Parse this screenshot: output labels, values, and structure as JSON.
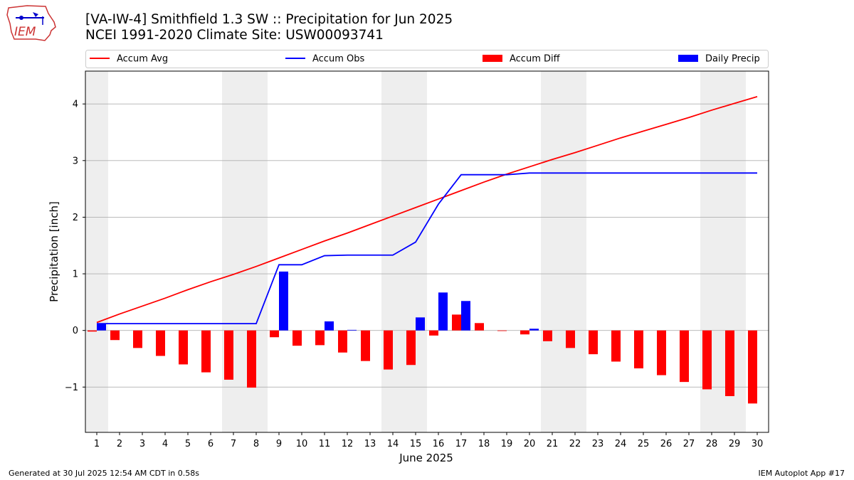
{
  "header": {
    "title_line1": "[VA-IW-4] Smithfield 1.3 SW :: Precipitation for Jun 2025",
    "title_line2": "NCEI 1991-2020 Climate Site: USW00093741"
  },
  "logo": {
    "text": "IEM"
  },
  "footer": {
    "left": "Generated at 30 Jul 2025 12:54 AM CDT in 0.58s",
    "right": "IEM Autoplot App #17"
  },
  "colors": {
    "avg": "#ff0000",
    "obs": "#0000ff",
    "diff": "#ff0000",
    "daily": "#0000ff",
    "weekend_shade": "#eeeeee",
    "grid": "#b0b0b0"
  },
  "chart_data": {
    "type": "bar",
    "xlabel": "June 2025",
    "ylabel": "Precipitation [inch]",
    "ylim": [
      -1.8,
      4.58
    ],
    "yticks": [
      -1,
      0,
      1,
      2,
      3,
      4
    ],
    "grid": "horizontal",
    "legend_position": "top",
    "x": [
      1,
      2,
      3,
      4,
      5,
      6,
      7,
      8,
      9,
      10,
      11,
      12,
      13,
      14,
      15,
      16,
      17,
      18,
      19,
      20,
      21,
      22,
      23,
      24,
      25,
      26,
      27,
      28,
      29,
      30
    ],
    "weekend_days": [
      1,
      7,
      8,
      14,
      15,
      21,
      22,
      28,
      29
    ],
    "series": [
      {
        "name": "Accum Avg",
        "kind": "line",
        "values": [
          0.14,
          0.29,
          0.43,
          0.57,
          0.72,
          0.86,
          0.99,
          1.13,
          1.28,
          1.43,
          1.58,
          1.72,
          1.87,
          2.02,
          2.17,
          2.32,
          2.47,
          2.62,
          2.76,
          2.89,
          3.02,
          3.14,
          3.27,
          3.4,
          3.52,
          3.64,
          3.76,
          3.89,
          4.01,
          4.13
        ]
      },
      {
        "name": "Accum Obs",
        "kind": "line",
        "values": [
          0.12,
          0.12,
          0.12,
          0.12,
          0.12,
          0.12,
          0.12,
          0.12,
          1.16,
          1.16,
          1.32,
          1.33,
          1.33,
          1.33,
          1.56,
          2.23,
          2.75,
          2.75,
          2.75,
          2.78,
          2.78,
          2.78,
          2.78,
          2.78,
          2.78,
          2.78,
          2.78,
          2.78,
          2.78,
          2.78
        ]
      },
      {
        "name": "Accum Diff",
        "kind": "bar",
        "values": [
          -0.02,
          -0.17,
          -0.31,
          -0.45,
          -0.6,
          -0.74,
          -0.87,
          -1.01,
          -0.12,
          -0.27,
          -0.26,
          -0.39,
          -0.54,
          -0.69,
          -0.61,
          -0.09,
          0.28,
          0.13,
          -0.01,
          -0.07,
          -0.19,
          -0.31,
          -0.42,
          -0.55,
          -0.67,
          -0.79,
          -0.91,
          -1.04,
          -1.16,
          -1.29
        ]
      },
      {
        "name": "Daily Precip",
        "kind": "bar",
        "values": [
          0.12,
          0,
          0,
          0,
          0,
          0,
          0,
          0,
          1.04,
          0,
          0.16,
          0.01,
          0,
          0,
          0.23,
          0.67,
          0.52,
          0,
          0,
          0.03,
          0,
          0,
          0,
          0,
          0,
          0,
          0,
          0,
          0,
          0
        ]
      }
    ]
  }
}
